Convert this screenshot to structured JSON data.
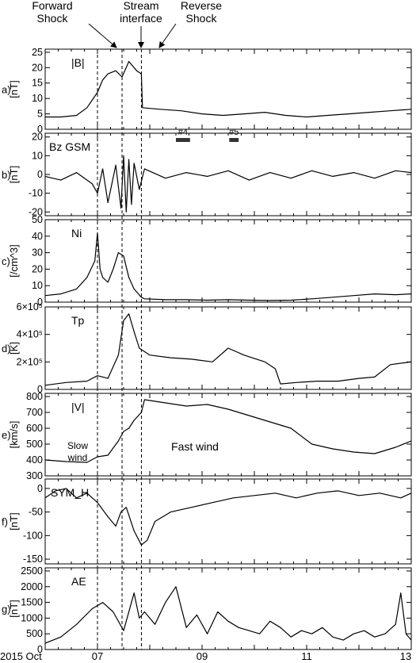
{
  "annotations": {
    "forward_shock": [
      "Forward",
      "Shock"
    ],
    "stream_interface": [
      "Stream",
      "interface"
    ],
    "reverse_shock": [
      "Reverse",
      "Shock"
    ]
  },
  "date_prefix": "2015 Oct",
  "x_ticks": [
    {
      "day": 7,
      "label": "07"
    },
    {
      "day": 9,
      "label": "09"
    },
    {
      "day": 11,
      "label": "11"
    },
    {
      "day": 13,
      "label": "13"
    }
  ],
  "event_days": [
    7.0,
    7.47,
    7.84
  ],
  "chart_data": [
    {
      "type": "line",
      "panel_label": "a)",
      "ylabel": "[nT]",
      "series_label": "|B|",
      "ylim": [
        0,
        26
      ],
      "yticks": [
        {
          "v": 0,
          "t": "0"
        },
        {
          "v": 5,
          "t": "5"
        },
        {
          "v": 10,
          "t": "10"
        },
        {
          "v": 15,
          "t": "15"
        },
        {
          "v": 20,
          "t": "20"
        },
        {
          "v": 25,
          "t": "25"
        }
      ],
      "x": [
        6.0,
        6.3,
        6.6,
        6.8,
        7.0,
        7.1,
        7.2,
        7.35,
        7.47,
        7.55,
        7.6,
        7.75,
        7.84,
        7.86,
        8.2,
        8.6,
        9.0,
        9.4,
        9.8,
        10.2,
        10.6,
        11.0,
        11.4,
        11.8,
        12.2,
        12.6,
        13.0
      ],
      "y": [
        4,
        4,
        4.5,
        7,
        12,
        16,
        18,
        19,
        17,
        20,
        22,
        19,
        18,
        7,
        6.5,
        6,
        5,
        4.5,
        5,
        5.5,
        4.5,
        4,
        4.5,
        5,
        5.5,
        6,
        6.5
      ]
    },
    {
      "type": "line",
      "panel_label": "b)",
      "ylabel": "[nT]",
      "series_label": "Bz GSM",
      "ylim": [
        -22,
        22
      ],
      "yticks": [
        {
          "v": -20,
          "t": "-20"
        },
        {
          "v": -10,
          "t": "-10"
        },
        {
          "v": 0,
          "t": "0"
        },
        {
          "v": 10,
          "t": "10"
        },
        {
          "v": 20,
          "t": "20"
        }
      ],
      "x": [
        6.0,
        6.3,
        6.6,
        6.9,
        7.0,
        7.1,
        7.2,
        7.35,
        7.45,
        7.5,
        7.55,
        7.6,
        7.65,
        7.7,
        7.8,
        7.9,
        8.3,
        8.7,
        9.1,
        9.5,
        9.9,
        10.3,
        10.7,
        11.1,
        11.5,
        11.9,
        12.3,
        12.7,
        13.0
      ],
      "y": [
        -1,
        -3,
        1,
        -5,
        -10,
        3,
        -15,
        5,
        -18,
        10,
        -20,
        8,
        -16,
        6,
        -8,
        3,
        -2,
        1,
        -1,
        2,
        -3,
        1,
        -2,
        2,
        -1,
        1,
        -2,
        2,
        1
      ],
      "bars": [
        {
          "label": "#4",
          "x0": 8.5,
          "x1": 8.77
        },
        {
          "label": "#5",
          "x0": 9.52,
          "x1": 9.7
        }
      ]
    },
    {
      "type": "line",
      "panel_label": "c)",
      "ylabel": "[/cm^3]",
      "series_label": "Ni",
      "ylim": [
        0,
        50
      ],
      "yticks": [
        {
          "v": 0,
          "t": "0"
        },
        {
          "v": 10,
          "t": "10"
        },
        {
          "v": 20,
          "t": "20"
        },
        {
          "v": 30,
          "t": "30"
        },
        {
          "v": 40,
          "t": "40"
        },
        {
          "v": 50,
          "t": "50"
        }
      ],
      "x": [
        6.0,
        6.3,
        6.6,
        6.8,
        6.95,
        7.0,
        7.05,
        7.1,
        7.2,
        7.3,
        7.4,
        7.5,
        7.6,
        7.7,
        7.84,
        7.9,
        8.3,
        8.7,
        9.1,
        9.5,
        9.9,
        10.3,
        10.7,
        11.1,
        11.5,
        11.9,
        12.3,
        12.7,
        13.0
      ],
      "y": [
        4,
        5,
        8,
        15,
        25,
        42,
        20,
        15,
        12,
        20,
        30,
        28,
        15,
        8,
        3,
        2,
        1.5,
        1.5,
        1.2,
        1.5,
        1.2,
        1,
        1.2,
        2,
        3,
        4,
        5,
        4.5,
        5
      ]
    },
    {
      "type": "line",
      "panel_label": "d)",
      "ylabel": "[K]",
      "series_label": "Tp",
      "ylim": [
        0,
        600000
      ],
      "yticks": [
        {
          "v": 0,
          "t": "0"
        },
        {
          "v": 200000,
          "t": "2×10⁵"
        },
        {
          "v": 400000,
          "t": "4×10⁵"
        },
        {
          "v": 600000,
          "t": "6×10⁵"
        }
      ],
      "x": [
        6.0,
        6.4,
        6.8,
        7.0,
        7.2,
        7.4,
        7.5,
        7.6,
        7.7,
        7.8,
        8.0,
        8.4,
        8.8,
        9.2,
        9.5,
        9.8,
        10.2,
        10.4,
        10.5,
        10.8,
        11.2,
        11.6,
        12.0,
        12.3,
        12.6,
        13.0
      ],
      "y": [
        30000,
        50000,
        60000,
        100000,
        80000,
        250000,
        500000,
        550000,
        420000,
        300000,
        250000,
        230000,
        220000,
        200000,
        300000,
        250000,
        200000,
        150000,
        40000,
        50000,
        60000,
        60000,
        80000,
        90000,
        180000,
        200000
      ]
    },
    {
      "type": "line",
      "panel_label": "e)",
      "ylabel": "[km/s]",
      "series_label": "|V|",
      "ylim": [
        300,
        820
      ],
      "yticks": [
        {
          "v": 300,
          "t": "300"
        },
        {
          "v": 400,
          "t": "400"
        },
        {
          "v": 500,
          "t": "500"
        },
        {
          "v": 600,
          "t": "600"
        },
        {
          "v": 700,
          "t": "700"
        },
        {
          "v": 800,
          "t": "800"
        }
      ],
      "x": [
        6.0,
        6.4,
        6.8,
        7.0,
        7.2,
        7.4,
        7.5,
        7.6,
        7.7,
        7.84,
        7.9,
        8.3,
        8.7,
        9.1,
        9.5,
        9.9,
        10.3,
        10.7,
        11.1,
        11.5,
        11.9,
        12.3,
        12.7,
        13.0
      ],
      "y": [
        400,
        390,
        385,
        420,
        430,
        520,
        580,
        600,
        650,
        700,
        780,
        760,
        740,
        750,
        720,
        680,
        640,
        600,
        500,
        470,
        450,
        440,
        480,
        520
      ],
      "labels": {
        "slow": [
          "Slow",
          "wind"
        ],
        "fast": "Fast wind"
      }
    },
    {
      "type": "line",
      "panel_label": "f)",
      "ylabel": "[nT]",
      "series_label": "SYM_H",
      "ylim": [
        -160,
        20
      ],
      "yticks": [
        {
          "v": -150,
          "t": "-150"
        },
        {
          "v": -100,
          "t": "-100"
        },
        {
          "v": -50,
          "t": "-50"
        },
        {
          "v": 0,
          "t": "0"
        }
      ],
      "x": [
        6.0,
        6.2,
        6.4,
        6.6,
        6.8,
        7.0,
        7.2,
        7.35,
        7.45,
        7.55,
        7.7,
        7.84,
        7.95,
        8.1,
        8.4,
        8.8,
        9.2,
        9.6,
        10.0,
        10.4,
        10.8,
        11.2,
        11.6,
        12.0,
        12.4,
        12.8,
        13.0
      ],
      "y": [
        -20,
        -5,
        0,
        -20,
        -10,
        -30,
        -60,
        -80,
        -50,
        -40,
        -90,
        -120,
        -110,
        -70,
        -50,
        -40,
        -30,
        -20,
        -15,
        -10,
        -20,
        -10,
        -5,
        -15,
        -10,
        -20,
        -10
      ]
    },
    {
      "type": "line",
      "panel_label": "g)",
      "ylabel": "[nT]",
      "series_label": "AE",
      "ylim": [
        0,
        2600
      ],
      "yticks": [
        {
          "v": 0,
          "t": "0"
        },
        {
          "v": 500,
          "t": "500"
        },
        {
          "v": 1000,
          "t": "1000"
        },
        {
          "v": 1500,
          "t": "1500"
        },
        {
          "v": 2000,
          "t": "2000"
        },
        {
          "v": 2500,
          "t": "2500"
        }
      ],
      "x": [
        6.0,
        6.3,
        6.6,
        6.9,
        7.1,
        7.3,
        7.5,
        7.7,
        7.8,
        7.9,
        8.1,
        8.3,
        8.5,
        8.7,
        8.9,
        9.1,
        9.3,
        9.5,
        9.7,
        9.9,
        10.1,
        10.3,
        10.5,
        10.7,
        10.9,
        11.1,
        11.3,
        11.5,
        11.7,
        11.9,
        12.1,
        12.3,
        12.5,
        12.7,
        12.8,
        12.9,
        13.0
      ],
      "y": [
        200,
        400,
        800,
        1300,
        1500,
        1200,
        600,
        1800,
        1000,
        1200,
        800,
        1500,
        2000,
        700,
        1100,
        500,
        1200,
        900,
        700,
        600,
        500,
        900,
        700,
        400,
        600,
        500,
        700,
        400,
        300,
        500,
        600,
        400,
        500,
        800,
        1800,
        500,
        300
      ]
    }
  ]
}
